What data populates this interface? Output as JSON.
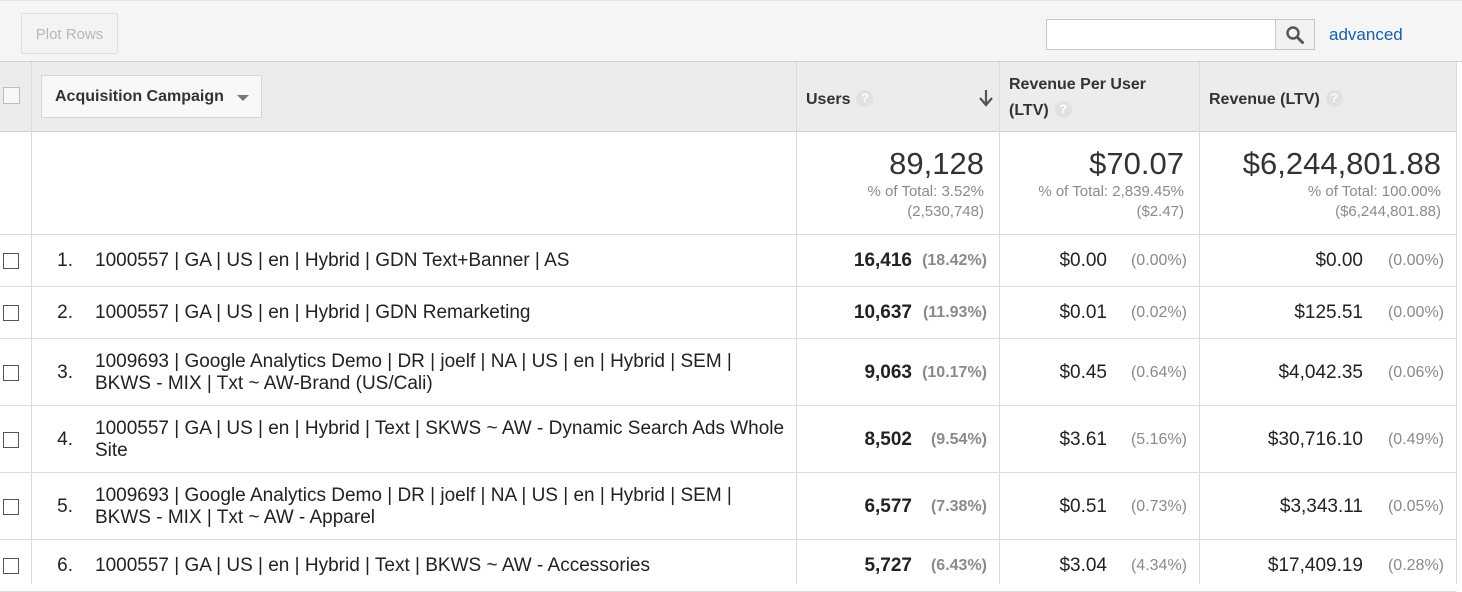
{
  "toolbar": {
    "plot_rows_label": "Plot Rows",
    "search_value": "",
    "search_icon": "search-icon",
    "advanced_label": "advanced"
  },
  "table": {
    "dimension_label": "Acquisition Campaign",
    "columns": {
      "users": "Users",
      "rpu_line1": "Revenue Per User",
      "rpu_line2": "(LTV)",
      "revenue": "Revenue (LTV)"
    },
    "sort_icon": "sort-descending-arrow-icon",
    "help_glyph": "?",
    "totals": {
      "users": {
        "value": "89,128",
        "pct": "% of Total: 3.52%",
        "base": "(2,530,748)"
      },
      "rpu": {
        "value": "$70.07",
        "pct": "% of Total: 2,839.45%",
        "base": "($2.47)"
      },
      "revenue": {
        "value": "$6,244,801.88",
        "pct": "% of Total: 100.00%",
        "base": "($6,244,801.88)"
      }
    },
    "rows": [
      {
        "index": "1.",
        "name": "1000557 | GA | US | en | Hybrid | GDN Text+Banner | AS",
        "users": "16,416",
        "users_pct": "(18.42%)",
        "rpu": "$0.00",
        "rpu_pct": "(0.00%)",
        "revenue": "$0.00",
        "revenue_pct": "(0.00%)"
      },
      {
        "index": "2.",
        "name": "1000557 | GA | US | en | Hybrid | GDN Remarketing",
        "users": "10,637",
        "users_pct": "(11.93%)",
        "rpu": "$0.01",
        "rpu_pct": "(0.02%)",
        "revenue": "$125.51",
        "revenue_pct": "(0.00%)"
      },
      {
        "index": "3.",
        "name": "1009693 | Google Analytics Demo | DR | joelf | NA | US | en | Hybrid | SEM | BKWS - MIX | Txt ~ AW-Brand (US/Cali)",
        "users": "9,063",
        "users_pct": "(10.17%)",
        "rpu": "$0.45",
        "rpu_pct": "(0.64%)",
        "revenue": "$4,042.35",
        "revenue_pct": "(0.06%)"
      },
      {
        "index": "4.",
        "name": "1000557 | GA | US | en | Hybrid | Text | SKWS ~ AW - Dynamic Search Ads Whole Site",
        "users": "8,502",
        "users_pct": "(9.54%)",
        "rpu": "$3.61",
        "rpu_pct": "(5.16%)",
        "revenue": "$30,716.10",
        "revenue_pct": "(0.49%)"
      },
      {
        "index": "5.",
        "name": "1009693 | Google Analytics Demo | DR | joelf | NA | US | en | Hybrid | SEM | BKWS - MIX | Txt ~ AW - Apparel",
        "users": "6,577",
        "users_pct": "(7.38%)",
        "rpu": "$0.51",
        "rpu_pct": "(0.73%)",
        "revenue": "$3,343.11",
        "revenue_pct": "(0.05%)"
      },
      {
        "index": "6.",
        "name": "1000557 | GA | US | en | Hybrid | Text | BKWS ~ AW - Accessories",
        "users": "5,727",
        "users_pct": "(6.43%)",
        "rpu": "$3.04",
        "rpu_pct": "(4.34%)",
        "revenue": "$17,409.19",
        "revenue_pct": "(0.28%)"
      }
    ]
  }
}
